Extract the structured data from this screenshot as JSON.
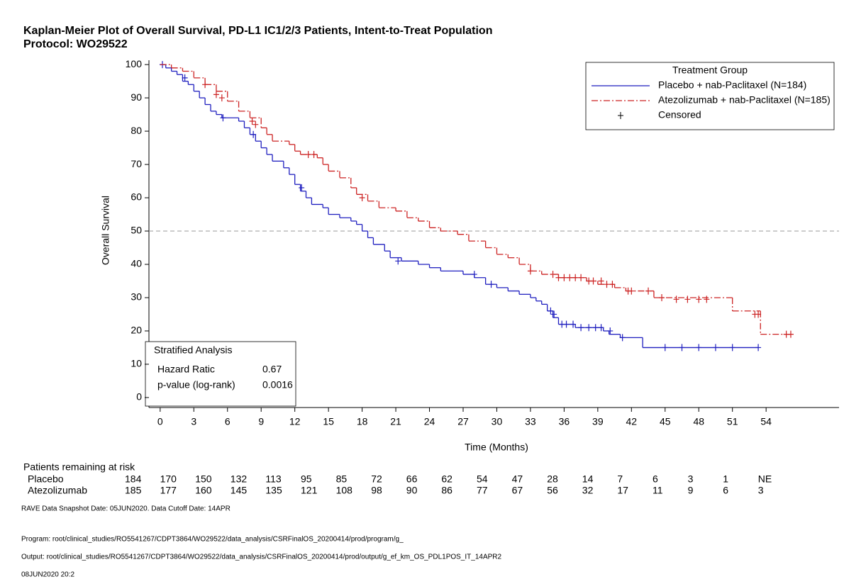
{
  "chart_data": {
    "type": "km",
    "title": "Kaplan-Meier Plot of Overall Survival, PD-L1 IC1/2/3 Patients, Intent-to-Treat Population",
    "subtitle": "Protocol: WO29522",
    "x_label": "Time (Months)",
    "y_label": "Overall Survival",
    "xlim": [
      -1,
      60.5
    ],
    "ylim": [
      -3,
      101.3
    ],
    "xticks": [
      0,
      3,
      6,
      9,
      12,
      15,
      18,
      21,
      24,
      27,
      30,
      33,
      36,
      39,
      42,
      45,
      48,
      51,
      54
    ],
    "yticks": [
      0,
      10,
      20,
      30,
      40,
      50,
      60,
      70,
      80,
      90,
      100
    ],
    "reference_line": 50,
    "legend_title": "Treatment Group",
    "censored_label": "Censored",
    "series": [
      {
        "name": "Placebo + nab-Paclitaxel (N=184)",
        "color": "#1f1fbf",
        "linestyle": "solid",
        "x": [
          0,
          0.5,
          1,
          1.5,
          2,
          2.5,
          3,
          3.5,
          4,
          4.5,
          5,
          5.5,
          7,
          7.5,
          8,
          8.5,
          9,
          9.5,
          10,
          11,
          11.5,
          12,
          12.5,
          13,
          13.5,
          14.5,
          15,
          16,
          17,
          17.5,
          18,
          18.5,
          19,
          20,
          20.5,
          21.5,
          23,
          24,
          25,
          27,
          28,
          29,
          30,
          31,
          32,
          33,
          33.5,
          34,
          34.5,
          35,
          35.5,
          37,
          39.5,
          40,
          41,
          43,
          53.3
        ],
        "values": [
          100,
          99,
          98,
          97,
          95,
          94,
          92,
          90,
          88,
          86,
          85,
          84,
          83,
          81,
          79,
          77,
          75,
          73,
          71,
          69,
          67,
          64,
          62,
          60,
          58,
          57,
          55,
          54,
          53,
          52,
          50,
          48,
          46,
          44,
          42,
          41,
          40,
          39,
          38,
          37,
          36,
          34,
          33,
          32,
          31,
          30,
          29,
          28,
          26,
          24,
          22,
          21,
          20,
          19,
          18,
          15,
          15
        ],
        "censored": {
          "x": [
            0.2,
            2.2,
            5.6,
            8.3,
            12.6,
            21.2,
            28,
            29.5,
            34.8,
            35.1,
            35.8,
            36.2,
            36.8,
            37.5,
            38.2,
            38.8,
            39.3,
            40.1,
            41.2,
            45,
            46.5,
            48,
            49.5,
            51,
            53.3
          ],
          "values": [
            100,
            96,
            84,
            79,
            63,
            41,
            37,
            34,
            26,
            25,
            22,
            22,
            22,
            21,
            21,
            21,
            21,
            20,
            18,
            15,
            15,
            15,
            15,
            15,
            15
          ]
        }
      },
      {
        "name": "Atezolizumab + nab-Paclitaxel (N=185)",
        "color": "#cc2222",
        "linestyle": "dashdot",
        "x": [
          0,
          1,
          2,
          3,
          4,
          5,
          6,
          7,
          8,
          9,
          9.5,
          10,
          11.5,
          12,
          12.5,
          14,
          14.5,
          15,
          16,
          17,
          17.5,
          18.5,
          19.5,
          21,
          22,
          23,
          24,
          25,
          26.5,
          27.5,
          29,
          30,
          31,
          32,
          33,
          34,
          35.5,
          38,
          39,
          40.5,
          41.5,
          44,
          51,
          53.5,
          56.2
        ],
        "values": [
          100,
          99,
          98,
          96,
          94,
          92,
          89,
          86,
          84,
          81,
          79,
          77,
          76,
          74,
          73,
          72,
          70,
          68,
          66,
          63,
          61,
          59,
          57,
          56,
          54,
          53,
          51,
          50,
          49,
          47,
          45,
          43,
          42,
          40,
          38,
          37,
          36,
          35,
          34,
          33,
          32,
          30,
          26,
          19,
          19
        ],
        "censored": {
          "x": [
            4,
            5,
            5.5,
            8.2,
            8.5,
            13.2,
            13.7,
            18,
            33,
            35,
            35.5,
            36,
            36.5,
            37,
            37.5,
            38.2,
            38.6,
            39.3,
            39.8,
            40.3,
            41.7,
            42,
            43.5,
            44.7,
            46,
            47,
            48,
            48.7,
            53,
            53.3,
            55.8,
            56.2
          ],
          "values": [
            94,
            91,
            90,
            83,
            82,
            73,
            73,
            60,
            38,
            37,
            36,
            36,
            36,
            36,
            36,
            35,
            35,
            35,
            34,
            34,
            32,
            32,
            32,
            30,
            29.5,
            29.5,
            29.5,
            29.5,
            25,
            25,
            19,
            19
          ]
        }
      }
    ],
    "stats": {
      "title": "Stratified Analysis",
      "rows": [
        [
          "Hazard Ratic",
          0.67
        ],
        [
          "p-value (log-rank)",
          0.0016
        ]
      ]
    },
    "risk_table": {
      "title": "Patients remaining at risk",
      "rows": [
        {
          "name": "Placebo",
          "values": [
            184,
            170,
            150,
            132,
            113,
            95,
            85,
            72,
            66,
            62,
            54,
            47,
            28,
            14,
            7,
            6,
            3,
            1,
            "NE"
          ]
        },
        {
          "name": "Atezolizumab",
          "values": [
            185,
            177,
            160,
            145,
            135,
            121,
            108,
            98,
            90,
            86,
            77,
            67,
            56,
            32,
            17,
            11,
            9,
            6,
            3
          ]
        }
      ]
    },
    "footnotes": [
      "RAVE Data Snapshot Date: 05JUN2020. Data Cutoff Date: 14APR",
      "Program: root/clinical_studies/RO5541267/CDPT3864/WO29522/data_analysis/CSRFinalOS_20200414/prod/program/g_",
      "Output: root/clinical_studies/RO5541267/CDPT3864/WO29522/data_analysis/CSRFinalOS_20200414/prod/output/g_ef_km_OS_PDL1POS_IT_14APR2",
      "08JUN2020 20:2"
    ]
  }
}
